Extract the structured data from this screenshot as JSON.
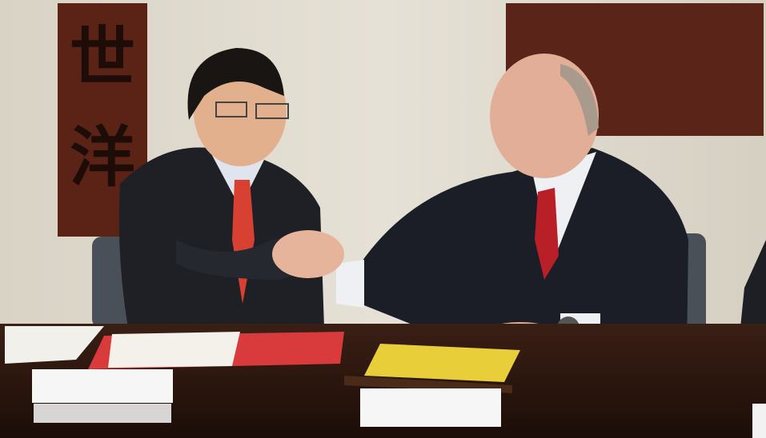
{
  "scroll": {
    "characters": [
      "世",
      "洋"
    ]
  }
}
